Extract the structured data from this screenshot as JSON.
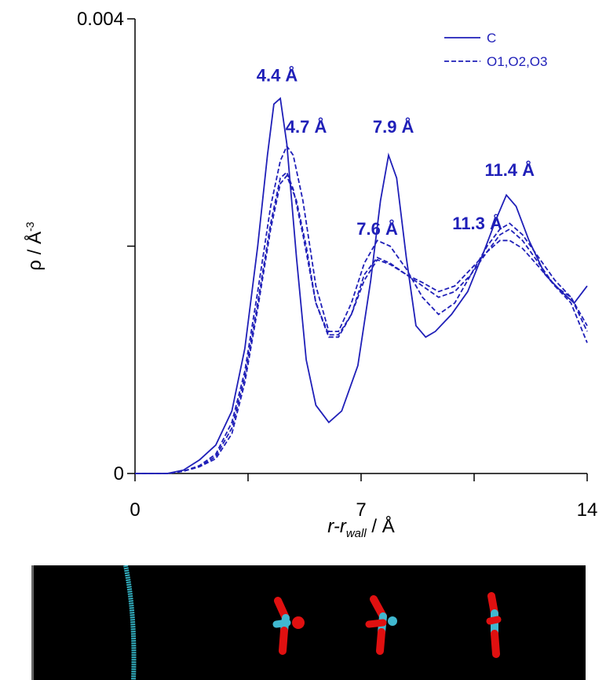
{
  "chart_data": {
    "type": "line",
    "xlabel_italic_main": "r-r",
    "xlabel_subscript": "wall",
    "xlabel_unit": " / Å",
    "ylabel_main": "ρ / Å",
    "ylabel_superscript": "-3",
    "xlim": [
      0,
      14
    ],
    "ylim": [
      0,
      0.004
    ],
    "x_ticks": [
      0,
      7,
      14
    ],
    "x_tick_labels": [
      "0",
      "7",
      "14"
    ],
    "y_ticks": [
      0,
      0.004
    ],
    "y_tick_labels": [
      "0",
      "0.004"
    ],
    "grid": false,
    "legend_position": "top-right",
    "color": "#1f1fb8",
    "series": [
      {
        "name": "C",
        "style": "solid",
        "points": [
          [
            0,
            0
          ],
          [
            1.0,
            0.0
          ],
          [
            1.5,
            3e-05
          ],
          [
            2.0,
            0.00012
          ],
          [
            2.5,
            0.00025
          ],
          [
            3.0,
            0.00055
          ],
          [
            3.4,
            0.0011
          ],
          [
            3.8,
            0.002
          ],
          [
            4.1,
            0.0028
          ],
          [
            4.3,
            0.00325
          ],
          [
            4.5,
            0.0033
          ],
          [
            4.7,
            0.0029
          ],
          [
            5.0,
            0.0019
          ],
          [
            5.3,
            0.001
          ],
          [
            5.6,
            0.0006
          ],
          [
            6.0,
            0.00045
          ],
          [
            6.4,
            0.00055
          ],
          [
            6.9,
            0.00095
          ],
          [
            7.3,
            0.0017
          ],
          [
            7.6,
            0.0024
          ],
          [
            7.85,
            0.0028
          ],
          [
            8.1,
            0.0026
          ],
          [
            8.4,
            0.0019
          ],
          [
            8.7,
            0.0013
          ],
          [
            9.0,
            0.0012
          ],
          [
            9.3,
            0.00125
          ],
          [
            9.8,
            0.0014
          ],
          [
            10.3,
            0.0016
          ],
          [
            10.8,
            0.00195
          ],
          [
            11.2,
            0.00225
          ],
          [
            11.5,
            0.00245
          ],
          [
            11.8,
            0.00235
          ],
          [
            12.2,
            0.00205
          ],
          [
            12.7,
            0.00175
          ],
          [
            13.2,
            0.0016
          ],
          [
            13.6,
            0.0015
          ],
          [
            14.0,
            0.00165
          ]
        ]
      },
      {
        "name": "O1,O2,O3",
        "style": "dashed",
        "points": [
          [
            0,
            0
          ],
          [
            1.0,
            0.0
          ],
          [
            1.5,
            2e-05
          ],
          [
            2.0,
            6e-05
          ],
          [
            2.5,
            0.00015
          ],
          [
            3.0,
            0.0004
          ],
          [
            3.4,
            0.00085
          ],
          [
            3.8,
            0.0015
          ],
          [
            4.2,
            0.0022
          ],
          [
            4.5,
            0.0026
          ],
          [
            4.7,
            0.00265
          ],
          [
            4.9,
            0.0025
          ],
          [
            5.2,
            0.0021
          ],
          [
            5.6,
            0.0015
          ],
          [
            6.0,
            0.0012
          ],
          [
            6.3,
            0.0012
          ],
          [
            6.7,
            0.0014
          ],
          [
            7.1,
            0.00175
          ],
          [
            7.5,
            0.0019
          ],
          [
            7.9,
            0.00185
          ],
          [
            8.4,
            0.00175
          ],
          [
            8.9,
            0.00165
          ],
          [
            9.4,
            0.00155
          ],
          [
            9.9,
            0.0016
          ],
          [
            10.4,
            0.00175
          ],
          [
            10.9,
            0.00195
          ],
          [
            11.3,
            0.0021
          ],
          [
            11.6,
            0.00215
          ],
          [
            12.0,
            0.00205
          ],
          [
            12.5,
            0.00185
          ],
          [
            13.0,
            0.00165
          ],
          [
            13.5,
            0.0015
          ],
          [
            14.0,
            0.00115
          ]
        ]
      }
    ],
    "extra_dashed_series": [
      {
        "points": [
          [
            0,
            0
          ],
          [
            1.0,
            0.0
          ],
          [
            1.5,
            2e-05
          ],
          [
            2.0,
            6e-05
          ],
          [
            2.5,
            0.00013
          ],
          [
            3.0,
            0.00035
          ],
          [
            3.4,
            0.0008
          ],
          [
            3.8,
            0.00145
          ],
          [
            4.2,
            0.00215
          ],
          [
            4.5,
            0.00255
          ],
          [
            4.7,
            0.00262
          ],
          [
            5.0,
            0.0024
          ],
          [
            5.3,
            0.002
          ],
          [
            5.6,
            0.0015
          ],
          [
            6.0,
            0.00122
          ],
          [
            6.3,
            0.00122
          ],
          [
            6.7,
            0.0014
          ],
          [
            7.1,
            0.0017
          ],
          [
            7.5,
            0.00188
          ],
          [
            7.9,
            0.00184
          ],
          [
            8.4,
            0.00175
          ],
          [
            8.9,
            0.00168
          ],
          [
            9.4,
            0.0016
          ],
          [
            9.9,
            0.00165
          ],
          [
            10.4,
            0.0018
          ],
          [
            10.9,
            0.00195
          ],
          [
            11.3,
            0.00205
          ],
          [
            11.6,
            0.00205
          ],
          [
            12.0,
            0.00198
          ],
          [
            12.5,
            0.00182
          ],
          [
            13.0,
            0.00165
          ],
          [
            13.5,
            0.00155
          ],
          [
            14.0,
            0.0013
          ]
        ]
      },
      {
        "points": [
          [
            0,
            0
          ],
          [
            1.0,
            0.0
          ],
          [
            1.5,
            2e-05
          ],
          [
            2.0,
            7e-05
          ],
          [
            2.5,
            0.00017
          ],
          [
            3.0,
            0.00045
          ],
          [
            3.4,
            0.0009
          ],
          [
            3.8,
            0.0016
          ],
          [
            4.2,
            0.00235
          ],
          [
            4.5,
            0.00275
          ],
          [
            4.7,
            0.00288
          ],
          [
            4.9,
            0.0028
          ],
          [
            5.2,
            0.0024
          ],
          [
            5.6,
            0.00165
          ],
          [
            6.0,
            0.00125
          ],
          [
            6.3,
            0.00125
          ],
          [
            6.7,
            0.0015
          ],
          [
            7.1,
            0.00185
          ],
          [
            7.5,
            0.00205
          ],
          [
            7.9,
            0.002
          ],
          [
            8.4,
            0.0018
          ],
          [
            8.9,
            0.00155
          ],
          [
            9.4,
            0.0014
          ],
          [
            9.9,
            0.0015
          ],
          [
            10.4,
            0.00175
          ],
          [
            10.9,
            0.002
          ],
          [
            11.3,
            0.00215
          ],
          [
            11.6,
            0.0022
          ],
          [
            12.0,
            0.0021
          ],
          [
            12.5,
            0.0019
          ],
          [
            13.0,
            0.0017
          ],
          [
            13.5,
            0.00155
          ],
          [
            14.0,
            0.00125
          ]
        ]
      }
    ],
    "annotations": [
      {
        "text": "4.4 Å",
        "x": 4.4,
        "y": 0.00345
      },
      {
        "text": "4.7 Å",
        "x": 5.3,
        "y": 0.003
      },
      {
        "text": "7.9 Å",
        "x": 8.0,
        "y": 0.003
      },
      {
        "text": "7.6 Å",
        "x": 7.5,
        "y": 0.0021
      },
      {
        "text": "11.4 Å",
        "x": 11.6,
        "y": 0.00262
      },
      {
        "text": "11.3 Å",
        "x": 10.6,
        "y": 0.00215
      }
    ]
  },
  "inset": {
    "background": "#000000",
    "chain_color": "#33b3c4",
    "oxygen_color": "#e01010",
    "carbon_color": "#40b8d0"
  }
}
